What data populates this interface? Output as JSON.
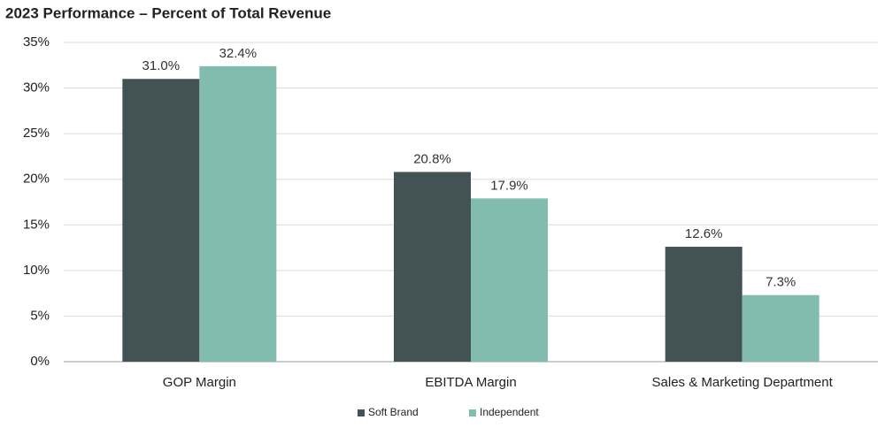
{
  "chart_data": {
    "type": "bar",
    "title": "2023 Performance – Percent of Total Revenue",
    "categories": [
      "GOP Margin",
      "EBITDA Margin",
      "Sales & Marketing Department"
    ],
    "series": [
      {
        "name": "Soft Brand",
        "color": "#435255",
        "values": [
          31.0,
          20.8,
          12.6
        ],
        "value_labels": [
          "31.0%",
          "20.8%",
          "12.6%"
        ]
      },
      {
        "name": "Independent",
        "color": "#82bcae",
        "values": [
          32.4,
          17.9,
          7.3
        ],
        "value_labels": [
          "32.4%",
          "17.9%",
          "7.3%"
        ]
      }
    ],
    "ylim": [
      0,
      35
    ],
    "yticks": [
      {
        "value": 0,
        "label": "0%"
      },
      {
        "value": 5,
        "label": "5%"
      },
      {
        "value": 10,
        "label": "10%"
      },
      {
        "value": 15,
        "label": "15%"
      },
      {
        "value": 20,
        "label": "20%"
      },
      {
        "value": 25,
        "label": "25%"
      },
      {
        "value": 30,
        "label": "30%"
      },
      {
        "value": 35,
        "label": "35%"
      }
    ],
    "grid": true,
    "legend": "bottom"
  }
}
